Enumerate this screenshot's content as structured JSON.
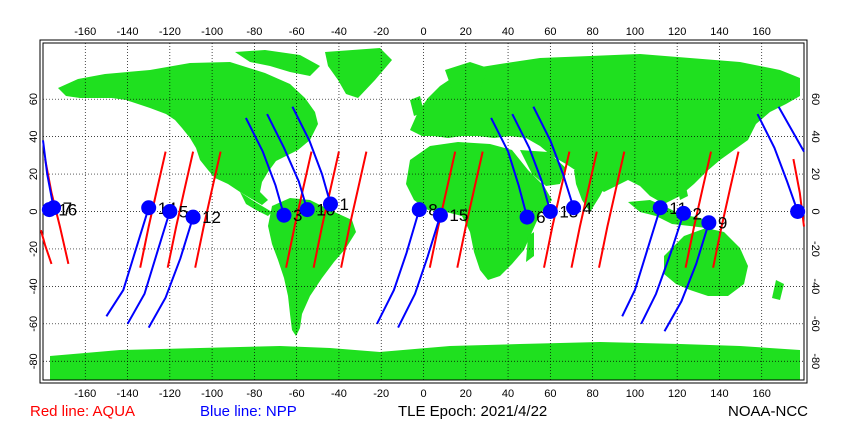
{
  "footer": {
    "aqua_label": "Red line: AQUA",
    "npp_label": "Blue line: NPP",
    "epoch_label": "TLE Epoch: 2021/4/22",
    "credit": "NOAA-NCC"
  },
  "colors": {
    "land": "#1fe01f",
    "ocean": "#ffffff",
    "aqua_track": "#ff0000",
    "npp_track": "#0000ff",
    "marker": "#0000ff",
    "aqua_text": "#ff0000",
    "npp_text": "#0000ff"
  },
  "axes": {
    "lon_ticks_top": [
      "-160",
      "-140",
      "-120",
      "-100",
      "-80",
      "-60",
      "-40",
      "-20",
      "0",
      "20",
      "40",
      "60",
      "80",
      "100",
      "120",
      "140",
      "160"
    ],
    "lon_ticks_bottom": [
      "-160",
      "-140",
      "-120",
      "-100",
      "-80",
      "-60",
      "-40",
      "-20",
      "0",
      "20",
      "40",
      "60",
      "80",
      "100",
      "120",
      "140",
      "160"
    ],
    "lat_ticks_left": [
      "60",
      "40",
      "20",
      "0",
      "-20",
      "-40",
      "-60",
      "-80"
    ],
    "lat_ticks_right": [
      "60",
      "40",
      "20",
      "0",
      "-20",
      "-40",
      "-60",
      "-80"
    ]
  },
  "map_data": {
    "lon_range": [
      -180,
      180
    ],
    "lat_range": [
      -90,
      90
    ],
    "lon_ticks": [
      -160,
      -140,
      -120,
      -100,
      -80,
      -60,
      -40,
      -20,
      0,
      20,
      40,
      60,
      80,
      100,
      120,
      140,
      160
    ],
    "lat_ticks": [
      60,
      40,
      20,
      0,
      -20,
      -40,
      -60,
      -80
    ],
    "grid": true,
    "positions": [
      {
        "label": "16",
        "lon": -177,
        "lat": 1
      },
      {
        "label": "7",
        "lon": -175,
        "lat": 2
      },
      {
        "label": "14",
        "lon": -130,
        "lat": 2
      },
      {
        "label": "5",
        "lon": -120,
        "lat": 0
      },
      {
        "label": "12",
        "lon": -109,
        "lat": -3
      },
      {
        "label": "3",
        "lon": -66,
        "lat": -2
      },
      {
        "label": "10",
        "lon": -55,
        "lat": 1
      },
      {
        "label": "1",
        "lon": -44,
        "lat": 4
      },
      {
        "label": "8",
        "lon": -2,
        "lat": 1
      },
      {
        "label": "15",
        "lon": 8,
        "lat": -2
      },
      {
        "label": "6",
        "lon": 49,
        "lat": -3
      },
      {
        "label": "13",
        "lon": 60,
        "lat": 0
      },
      {
        "label": "4",
        "lon": 71,
        "lat": 2
      },
      {
        "label": "11",
        "lon": 112,
        "lat": 2
      },
      {
        "label": "2",
        "lon": 123,
        "lat": -1
      },
      {
        "label": "9",
        "lon": 135,
        "lat": -6
      },
      {
        "label": "",
        "lon": 177,
        "lat": 0
      }
    ],
    "aqua_tracks": [
      [
        [
          -179,
          28
        ],
        [
          -176,
          10
        ],
        [
          -172,
          -8
        ],
        [
          -168,
          -28
        ]
      ],
      [
        [
          -181,
          -10
        ],
        [
          -179,
          -18
        ],
        [
          -176,
          -28
        ]
      ],
      [
        [
          -122,
          32
        ],
        [
          -126,
          12
        ],
        [
          -130,
          -8
        ],
        [
          -134,
          -30
        ]
      ],
      [
        [
          -109,
          32
        ],
        [
          -113,
          12
        ],
        [
          -117,
          -8
        ],
        [
          -121,
          -30
        ]
      ],
      [
        [
          -96,
          32
        ],
        [
          -100,
          12
        ],
        [
          -104,
          -8
        ],
        [
          -108,
          -30
        ]
      ],
      [
        [
          -53,
          32
        ],
        [
          -57,
          12
        ],
        [
          -61,
          -8
        ],
        [
          -65,
          -30
        ]
      ],
      [
        [
          -40,
          32
        ],
        [
          -44,
          12
        ],
        [
          -48,
          -8
        ],
        [
          -52,
          -30
        ]
      ],
      [
        [
          -27,
          32
        ],
        [
          -31,
          12
        ],
        [
          -35,
          -8
        ],
        [
          -39,
          -30
        ]
      ],
      [
        [
          15,
          32
        ],
        [
          11,
          12
        ],
        [
          7,
          -8
        ],
        [
          3,
          -30
        ]
      ],
      [
        [
          28,
          32
        ],
        [
          24,
          12
        ],
        [
          20,
          -8
        ],
        [
          16,
          -30
        ]
      ],
      [
        [
          69,
          32
        ],
        [
          65,
          12
        ],
        [
          61,
          -8
        ],
        [
          57,
          -30
        ]
      ],
      [
        [
          82,
          32
        ],
        [
          78,
          12
        ],
        [
          74,
          -8
        ],
        [
          70,
          -30
        ]
      ],
      [
        [
          95,
          32
        ],
        [
          91,
          12
        ],
        [
          87,
          -8
        ],
        [
          83,
          -30
        ]
      ],
      [
        [
          136,
          32
        ],
        [
          132,
          12
        ],
        [
          128,
          -8
        ],
        [
          124,
          -30
        ]
      ],
      [
        [
          149,
          32
        ],
        [
          145,
          12
        ],
        [
          141,
          -8
        ],
        [
          137,
          -30
        ]
      ],
      [
        [
          175,
          28
        ],
        [
          178,
          10
        ],
        [
          180,
          -8
        ]
      ]
    ],
    "npp_tracks": [
      [
        [
          -180,
          38
        ],
        [
          -178,
          20
        ],
        [
          -175,
          2
        ]
      ],
      [
        [
          -130,
          2
        ],
        [
          -136,
          -20
        ],
        [
          -142,
          -42
        ],
        [
          -150,
          -56
        ]
      ],
      [
        [
          -120,
          0
        ],
        [
          -126,
          -22
        ],
        [
          -132,
          -44
        ],
        [
          -140,
          -60
        ]
      ],
      [
        [
          -109,
          -3
        ],
        [
          -115,
          -25
        ],
        [
          -122,
          -46
        ],
        [
          -130,
          -62
        ]
      ],
      [
        [
          -84,
          50
        ],
        [
          -76,
          32
        ],
        [
          -70,
          14
        ],
        [
          -66,
          -2
        ]
      ],
      [
        [
          -74,
          52
        ],
        [
          -66,
          34
        ],
        [
          -59,
          16
        ],
        [
          -55,
          1
        ]
      ],
      [
        [
          -62,
          56
        ],
        [
          -54,
          38
        ],
        [
          -48,
          20
        ],
        [
          -44,
          4
        ]
      ],
      [
        [
          -2,
          1
        ],
        [
          -8,
          -22
        ],
        [
          -14,
          -42
        ],
        [
          -22,
          -60
        ]
      ],
      [
        [
          8,
          -2
        ],
        [
          2,
          -24
        ],
        [
          -4,
          -44
        ],
        [
          -12,
          -62
        ]
      ],
      [
        [
          32,
          50
        ],
        [
          40,
          32
        ],
        [
          45,
          14
        ],
        [
          49,
          -3
        ]
      ],
      [
        [
          42,
          52
        ],
        [
          50,
          34
        ],
        [
          56,
          16
        ],
        [
          60,
          0
        ]
      ],
      [
        [
          52,
          56
        ],
        [
          60,
          38
        ],
        [
          66,
          20
        ],
        [
          71,
          2
        ]
      ],
      [
        [
          112,
          2
        ],
        [
          106,
          -20
        ],
        [
          100,
          -42
        ],
        [
          94,
          -56
        ]
      ],
      [
        [
          123,
          -1
        ],
        [
          117,
          -22
        ],
        [
          110,
          -44
        ],
        [
          103,
          -60
        ]
      ],
      [
        [
          135,
          -6
        ],
        [
          129,
          -28
        ],
        [
          122,
          -48
        ],
        [
          114,
          -64
        ]
      ],
      [
        [
          158,
          52
        ],
        [
          166,
          34
        ],
        [
          172,
          16
        ],
        [
          177,
          0
        ]
      ],
      [
        [
          168,
          56
        ],
        [
          175,
          42
        ],
        [
          180,
          32
        ]
      ]
    ]
  }
}
